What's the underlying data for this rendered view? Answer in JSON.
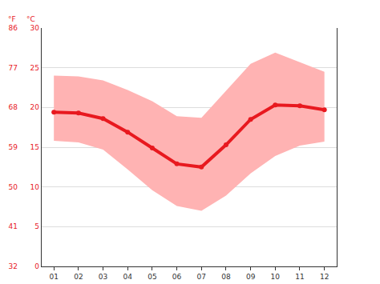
{
  "chart_data": {
    "type": "line",
    "categories": [
      "01",
      "02",
      "03",
      "04",
      "05",
      "06",
      "07",
      "08",
      "09",
      "10",
      "11",
      "12"
    ],
    "series": [
      {
        "values": [
          19.4,
          19.3,
          18.6,
          16.9,
          14.9,
          12.9,
          12.5,
          15.3,
          18.5,
          20.3,
          20.2,
          19.7
        ],
        "color": "#e8191f",
        "marker": "circle"
      }
    ],
    "band": {
      "upper": [
        24.0,
        23.9,
        23.4,
        22.2,
        20.8,
        18.9,
        18.7,
        22.1,
        25.5,
        26.9,
        25.7,
        24.5
      ],
      "lower": [
        15.8,
        15.6,
        14.7,
        12.2,
        9.6,
        7.6,
        7.0,
        8.9,
        11.7,
        13.9,
        15.2,
        15.7
      ],
      "color": "#ffb3b3"
    },
    "y_label": "°C",
    "ylim": [
      0,
      30
    ],
    "yticks": [
      0,
      5,
      10,
      15,
      20,
      25,
      30
    ],
    "y2_label": "°F",
    "y2lim": [
      32,
      86
    ],
    "y2ticks": [
      32,
      41,
      50,
      59,
      68,
      77,
      86
    ],
    "grid": true
  }
}
